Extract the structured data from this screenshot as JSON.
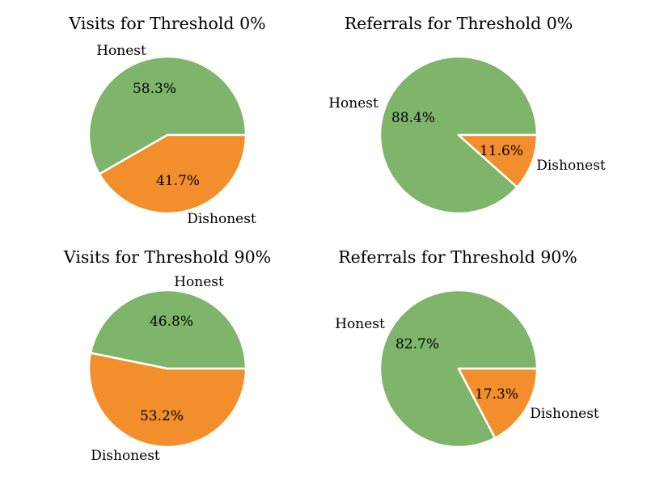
{
  "colors": {
    "honest": "#7eb56a",
    "dishonest": "#f28e2b",
    "edge": "#ffffff"
  },
  "chart_data": [
    {
      "type": "pie",
      "title": "Visits for Threshold 0%",
      "categories": [
        "Honest",
        "Dishonest"
      ],
      "values": [
        58.3,
        41.7
      ],
      "value_labels": [
        "58.3%",
        "41.7%"
      ]
    },
    {
      "type": "pie",
      "title": "Referrals for Threshold 0%",
      "categories": [
        "Honest",
        "Dishonest"
      ],
      "values": [
        88.4,
        11.6
      ],
      "value_labels": [
        "88.4%",
        "11.6%"
      ]
    },
    {
      "type": "pie",
      "title": "Visits for Threshold 90%",
      "categories": [
        "Honest",
        "Dishonest"
      ],
      "values": [
        46.8,
        53.2
      ],
      "value_labels": [
        "46.8%",
        "53.2%"
      ]
    },
    {
      "type": "pie",
      "title": "Referrals for Threshold 90%",
      "categories": [
        "Honest",
        "Dishonest"
      ],
      "values": [
        82.7,
        17.3
      ],
      "value_labels": [
        "82.7%",
        "17.3%"
      ]
    }
  ]
}
